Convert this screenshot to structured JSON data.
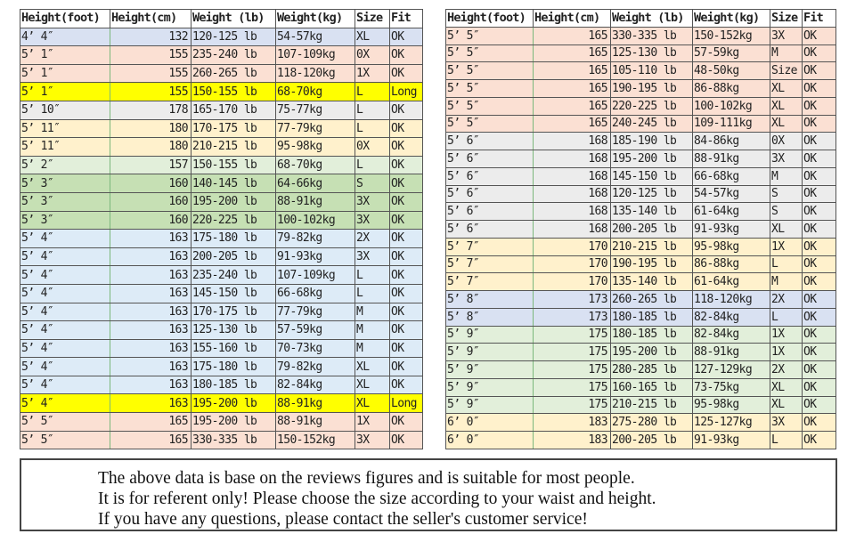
{
  "headers": [
    "Height(foot)",
    "Height(cm)",
    "Weight (lb)",
    "Weight(kg)",
    "Size",
    "Fit"
  ],
  "colors": {
    "blue": "#d9e1f2",
    "peach": "#fbe0d3",
    "yellow": "#ffff00",
    "gray": "#ececec",
    "cream": "#fff1cc",
    "lightgreen": "#e2efda",
    "green": "#c6e0b4",
    "lightblue": "#ddebf7"
  },
  "left_table": [
    [
      "4’ 4″",
      "132",
      "120-125 lb",
      "54-57kg",
      "XL",
      "OK",
      "blue"
    ],
    [
      "5’ 1″",
      "155",
      "235-240 lb",
      "107-109kg",
      "0X",
      "OK",
      "peach"
    ],
    [
      "5’ 1″",
      "155",
      "260-265 lb",
      "118-120kg",
      "1X",
      "OK",
      "peach"
    ],
    [
      "5’ 1″",
      "155",
      "150-155 lb",
      "68-70kg",
      "L",
      "Long",
      "yellow"
    ],
    [
      "5’ 10″",
      "178",
      "165-170 lb",
      "75-77kg",
      "L",
      "OK",
      "gray"
    ],
    [
      "5’ 11″",
      "180",
      "170-175 lb",
      "77-79kg",
      "L",
      "OK",
      "cream"
    ],
    [
      "5’ 11″",
      "180",
      "210-215 lb",
      "95-98kg",
      "0X",
      "OK",
      "cream"
    ],
    [
      "5’ 2″",
      "157",
      "150-155 lb",
      "68-70kg",
      "L",
      "OK",
      "lightgreen"
    ],
    [
      "5’ 3″",
      "160",
      "140-145 lb",
      "64-66kg",
      "S",
      "OK",
      "green"
    ],
    [
      "5’ 3″",
      "160",
      "195-200 lb",
      "88-91kg",
      "3X",
      "OK",
      "green"
    ],
    [
      "5’ 3″",
      "160",
      "220-225 lb",
      "100-102kg",
      "3X",
      "OK",
      "green"
    ],
    [
      "5’ 4″",
      "163",
      "175-180 lb",
      "79-82kg",
      "2X",
      "OK",
      "lightblue"
    ],
    [
      "5’ 4″",
      "163",
      "200-205 lb",
      "91-93kg",
      "3X",
      "OK",
      "lightblue"
    ],
    [
      "5’ 4″",
      "163",
      "235-240 lb",
      "107-109kg",
      "L",
      "OK",
      "lightblue"
    ],
    [
      "5’ 4″",
      "163",
      "145-150 lb",
      "66-68kg",
      "L",
      "OK",
      "lightblue"
    ],
    [
      "5’ 4″",
      "163",
      "170-175 lb",
      "77-79kg",
      "M",
      "OK",
      "lightblue"
    ],
    [
      "5’ 4″",
      "163",
      "125-130 lb",
      "57-59kg",
      "M",
      "OK",
      "lightblue"
    ],
    [
      "5’ 4″",
      "163",
      "155-160 lb",
      "70-73kg",
      "M",
      "OK",
      "lightblue"
    ],
    [
      "5’ 4″",
      "163",
      "175-180 lb",
      "79-82kg",
      "XL",
      "OK",
      "lightblue"
    ],
    [
      "5’ 4″",
      "163",
      "180-185 lb",
      "82-84kg",
      "XL",
      "OK",
      "lightblue"
    ],
    [
      "5’ 4″",
      "163",
      "195-200 lb",
      "88-91kg",
      "XL",
      "Long",
      "yellow"
    ],
    [
      "5’ 5″",
      "165",
      "195-200 lb",
      "88-91kg",
      "1X",
      "OK",
      "peach"
    ],
    [
      "5’ 5″",
      "165",
      "330-335 lb",
      "150-152kg",
      "3X",
      "OK",
      "peach"
    ]
  ],
  "right_table": [
    [
      "5’ 5″",
      "165",
      "330-335 lb",
      "150-152kg",
      "3X",
      "OK",
      "peach"
    ],
    [
      "5’ 5″",
      "165",
      "125-130 lb",
      "57-59kg",
      "M",
      "OK",
      "peach"
    ],
    [
      "5’ 5″",
      "165",
      "105-110 lb",
      "48-50kg",
      "Size",
      "OK",
      "peach"
    ],
    [
      "5’ 5″",
      "165",
      "190-195 lb",
      "86-88kg",
      "XL",
      "OK",
      "peach"
    ],
    [
      "5’ 5″",
      "165",
      "220-225 lb",
      "100-102kg",
      "XL",
      "OK",
      "peach"
    ],
    [
      "5’ 5″",
      "165",
      "240-245 lb",
      "109-111kg",
      "XL",
      "OK",
      "peach"
    ],
    [
      "5’ 6″",
      "168",
      "185-190 lb",
      "84-86kg",
      "0X",
      "OK",
      "gray"
    ],
    [
      "5’ 6″",
      "168",
      "195-200 lb",
      "88-91kg",
      "3X",
      "OK",
      "gray"
    ],
    [
      "5’ 6″",
      "168",
      "145-150 lb",
      "66-68kg",
      "M",
      "OK",
      "gray"
    ],
    [
      "5’ 6″",
      "168",
      "120-125 lb",
      "54-57kg",
      "S",
      "OK",
      "gray"
    ],
    [
      "5’ 6″",
      "168",
      "135-140 lb",
      "61-64kg",
      "S",
      "OK",
      "gray"
    ],
    [
      "5’ 6″",
      "168",
      "200-205 lb",
      "91-93kg",
      "XL",
      "OK",
      "gray"
    ],
    [
      "5’ 7″",
      "170",
      "210-215 lb",
      "95-98kg",
      "1X",
      "OK",
      "cream"
    ],
    [
      "5’ 7″",
      "170",
      "190-195 lb",
      "86-88kg",
      "L",
      "OK",
      "cream"
    ],
    [
      "5’ 7″",
      "170",
      "135-140 lb",
      "61-64kg",
      "M",
      "OK",
      "cream"
    ],
    [
      "5’ 8″",
      "173",
      "260-265 lb",
      "118-120kg",
      "2X",
      "OK",
      "blue"
    ],
    [
      "5’ 8″",
      "173",
      "180-185 lb",
      "82-84kg",
      "L",
      "OK",
      "blue"
    ],
    [
      "5’ 9″",
      "175",
      "180-185 lb",
      "82-84kg",
      "1X",
      "OK",
      "lightgreen"
    ],
    [
      "5’ 9″",
      "175",
      "195-200 lb",
      "88-91kg",
      "1X",
      "OK",
      "lightgreen"
    ],
    [
      "5’ 9″",
      "175",
      "280-285 lb",
      "127-129kg",
      "2X",
      "OK",
      "lightgreen"
    ],
    [
      "5’ 9″",
      "175",
      "160-165 lb",
      "73-75kg",
      "XL",
      "OK",
      "lightgreen"
    ],
    [
      "5’ 9″",
      "175",
      "210-215 lb",
      "95-98kg",
      "XL",
      "OK",
      "lightgreen"
    ],
    [
      "6’ 0″",
      "183",
      "275-280 lb",
      "125-127kg",
      "3X",
      "OK",
      "cream"
    ],
    [
      "6’ 0″",
      "183",
      "200-205 lb",
      "91-93kg",
      "L",
      "OK",
      "cream"
    ]
  ],
  "note": {
    "line1": "The above data is base on the reviews figures and is suitable for most people.",
    "line2": "It is for referent only! Please choose the size according to your waist and height.",
    "line3": "If you have any questions, please contact the seller's customer service!"
  }
}
